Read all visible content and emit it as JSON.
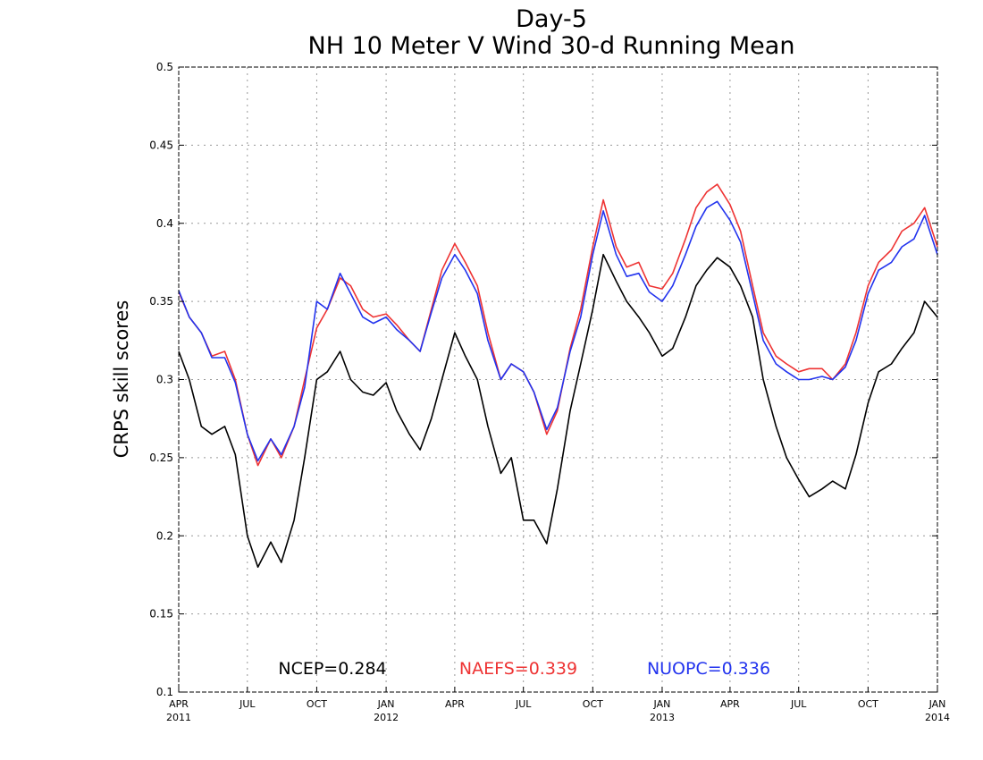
{
  "chart_data": {
    "type": "line",
    "title": "Day-5",
    "subtitle": "NH 10 Meter V Wind 30-d Running Mean",
    "xlabel": "",
    "ylabel": "CRPS skill scores",
    "ylim": [
      0.1,
      0.5
    ],
    "yticks": [
      "0.1",
      "0.15",
      "0.2",
      "0.25",
      "0.3",
      "0.35",
      "0.4",
      "0.45",
      "0.5"
    ],
    "xlim": [
      "2011-04-01",
      "2014-01-01"
    ],
    "xticks": [
      {
        "date": "2011-04-01",
        "label": "APR",
        "year": "2011"
      },
      {
        "date": "2011-07-01",
        "label": "JUL",
        "year": ""
      },
      {
        "date": "2011-10-01",
        "label": "OCT",
        "year": ""
      },
      {
        "date": "2012-01-01",
        "label": "JAN",
        "year": "2012"
      },
      {
        "date": "2012-04-01",
        "label": "APR",
        "year": ""
      },
      {
        "date": "2012-07-01",
        "label": "JUL",
        "year": ""
      },
      {
        "date": "2012-10-01",
        "label": "OCT",
        "year": ""
      },
      {
        "date": "2013-01-01",
        "label": "JAN",
        "year": "2013"
      },
      {
        "date": "2013-04-01",
        "label": "APR",
        "year": ""
      },
      {
        "date": "2013-07-01",
        "label": "JUL",
        "year": ""
      },
      {
        "date": "2013-10-01",
        "label": "OCT",
        "year": ""
      },
      {
        "date": "2014-01-01",
        "label": "JAN",
        "year": "2014"
      }
    ],
    "grid": true,
    "legend_placement": "bottom",
    "x": [
      "2011-04-01",
      "2011-04-15",
      "2011-05-01",
      "2011-05-15",
      "2011-06-01",
      "2011-06-15",
      "2011-07-01",
      "2011-07-15",
      "2011-08-01",
      "2011-08-15",
      "2011-09-01",
      "2011-09-15",
      "2011-10-01",
      "2011-10-15",
      "2011-11-01",
      "2011-11-15",
      "2011-12-01",
      "2011-12-15",
      "2012-01-01",
      "2012-01-15",
      "2012-02-01",
      "2012-02-15",
      "2012-03-01",
      "2012-03-15",
      "2012-04-01",
      "2012-04-15",
      "2012-05-01",
      "2012-05-15",
      "2012-06-01",
      "2012-06-15",
      "2012-07-01",
      "2012-07-15",
      "2012-08-01",
      "2012-08-15",
      "2012-09-01",
      "2012-09-15",
      "2012-10-01",
      "2012-10-15",
      "2012-11-01",
      "2012-11-15",
      "2012-12-01",
      "2012-12-15",
      "2013-01-01",
      "2013-01-15",
      "2013-02-01",
      "2013-02-15",
      "2013-03-01",
      "2013-03-15",
      "2013-04-01",
      "2013-04-15",
      "2013-05-01",
      "2013-05-15",
      "2013-06-01",
      "2013-06-15",
      "2013-07-01",
      "2013-07-15",
      "2013-08-01",
      "2013-08-15",
      "2013-09-01",
      "2013-09-15",
      "2013-10-01",
      "2013-10-15",
      "2013-11-01",
      "2013-11-15",
      "2013-12-01",
      "2013-12-15",
      "2014-01-01"
    ],
    "series": [
      {
        "name": "NCEP",
        "color": "#000000",
        "values": [
          0.318,
          0.3,
          0.27,
          0.265,
          0.27,
          0.252,
          0.2,
          0.18,
          0.196,
          0.183,
          0.21,
          0.25,
          0.3,
          0.305,
          0.318,
          0.3,
          0.292,
          0.29,
          0.298,
          0.28,
          0.265,
          0.255,
          0.275,
          0.3,
          0.33,
          0.315,
          0.3,
          0.27,
          0.24,
          0.25,
          0.21,
          0.21,
          0.195,
          0.23,
          0.28,
          0.31,
          0.345,
          0.38,
          0.363,
          0.35,
          0.34,
          0.33,
          0.315,
          0.32,
          0.34,
          0.36,
          0.37,
          0.378,
          0.372,
          0.36,
          0.34,
          0.3,
          0.27,
          0.25,
          0.236,
          0.225,
          0.23,
          0.235,
          0.23,
          0.252,
          0.285,
          0.305,
          0.31,
          0.32,
          0.33,
          0.35,
          0.34
        ]
      },
      {
        "name": "NAEFS",
        "color": "#ee3333",
        "values": [
          0.356,
          0.34,
          0.33,
          0.315,
          0.318,
          0.3,
          0.265,
          0.245,
          0.262,
          0.25,
          0.27,
          0.3,
          0.333,
          0.345,
          0.365,
          0.36,
          0.345,
          0.34,
          0.342,
          0.335,
          0.325,
          0.318,
          0.345,
          0.37,
          0.387,
          0.375,
          0.36,
          0.33,
          0.3,
          0.31,
          0.305,
          0.292,
          0.265,
          0.28,
          0.32,
          0.345,
          0.385,
          0.415,
          0.385,
          0.372,
          0.375,
          0.36,
          0.358,
          0.368,
          0.39,
          0.41,
          0.42,
          0.425,
          0.412,
          0.395,
          0.36,
          0.33,
          0.315,
          0.31,
          0.305,
          0.307,
          0.307,
          0.3,
          0.31,
          0.33,
          0.36,
          0.375,
          0.383,
          0.395,
          0.4,
          0.41,
          0.385
        ]
      },
      {
        "name": "NUOPC",
        "color": "#2233ee",
        "values": [
          0.357,
          0.34,
          0.33,
          0.314,
          0.314,
          0.298,
          0.265,
          0.248,
          0.262,
          0.252,
          0.27,
          0.295,
          0.35,
          0.345,
          0.368,
          0.355,
          0.34,
          0.336,
          0.34,
          0.332,
          0.325,
          0.318,
          0.343,
          0.365,
          0.38,
          0.37,
          0.355,
          0.325,
          0.3,
          0.31,
          0.305,
          0.292,
          0.268,
          0.282,
          0.318,
          0.34,
          0.38,
          0.408,
          0.38,
          0.366,
          0.368,
          0.356,
          0.35,
          0.36,
          0.38,
          0.398,
          0.41,
          0.414,
          0.402,
          0.388,
          0.355,
          0.325,
          0.31,
          0.305,
          0.3,
          0.3,
          0.302,
          0.3,
          0.308,
          0.325,
          0.355,
          0.37,
          0.375,
          0.385,
          0.39,
          0.405,
          0.38
        ]
      }
    ],
    "legend": [
      {
        "text": "NCEP=0.284",
        "color": "#000000"
      },
      {
        "text": "NAEFS=0.339",
        "color": "#ee3333"
      },
      {
        "text": "NUOPC=0.336",
        "color": "#2233ee"
      }
    ]
  }
}
